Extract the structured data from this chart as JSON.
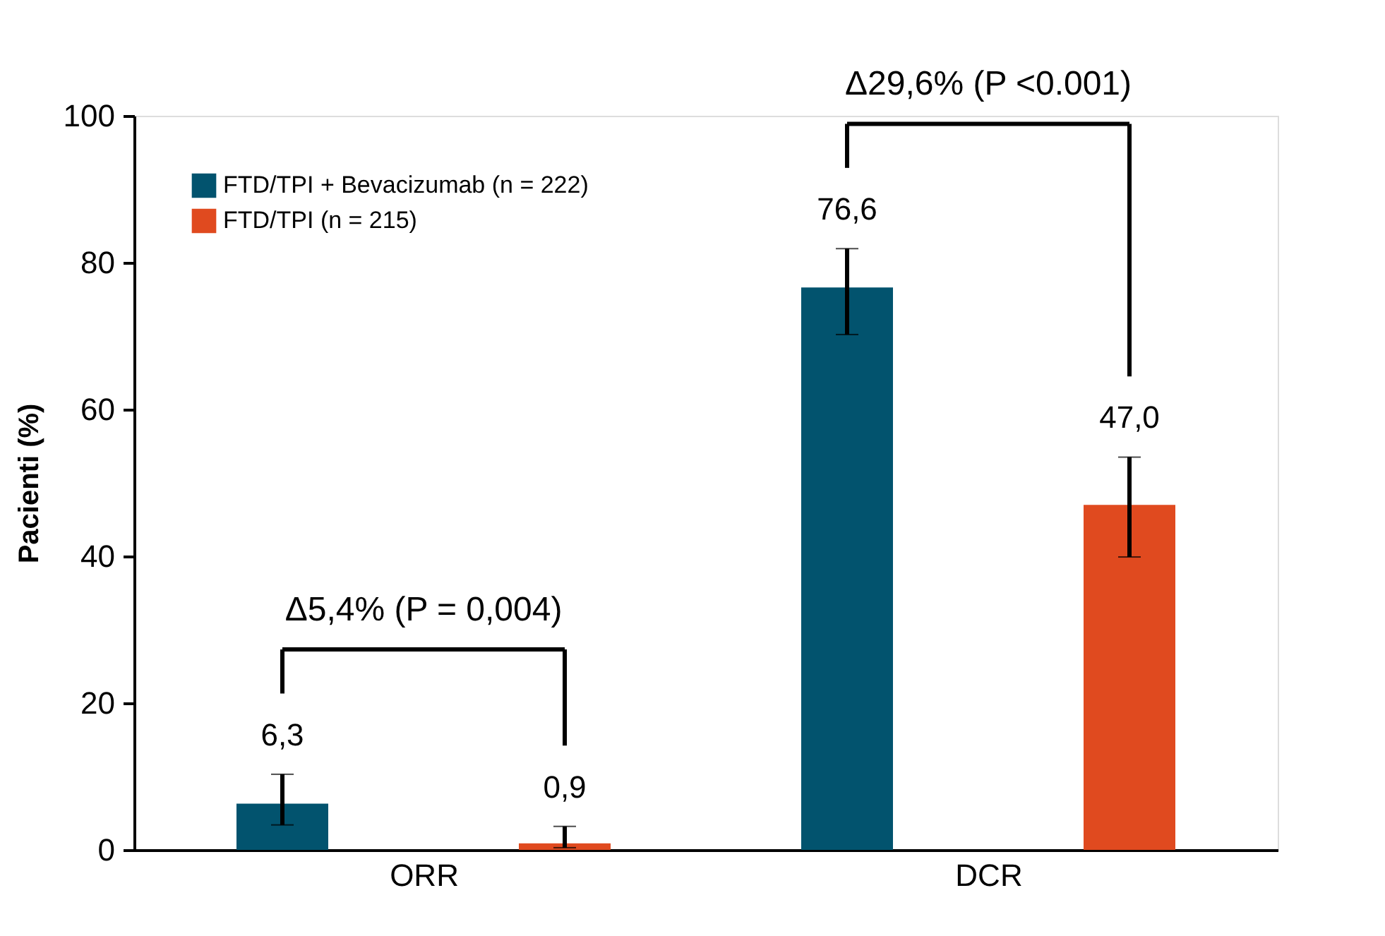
{
  "chart_data": {
    "type": "bar",
    "ylabel": "Pacienti (%)",
    "categories": [
      "ORR",
      "DCR"
    ],
    "series": [
      {
        "name": "FTD/TPI + Bevacizumab (n = 222)",
        "color": "#02536e",
        "values": [
          6.3,
          76.6
        ],
        "errors": [
          [
            3.4,
            10.3
          ],
          [
            70.2,
            81.9
          ]
        ],
        "value_labels": [
          "6,3",
          "76,6"
        ]
      },
      {
        "name": "FTD/TPI (n = 215)",
        "color": "#e04a1f",
        "values": [
          0.9,
          47.0
        ],
        "errors": [
          [
            0.3,
            3.2
          ],
          [
            39.9,
            53.5
          ]
        ],
        "value_labels": [
          "0,9",
          "47,0"
        ]
      }
    ],
    "ylim": [
      0,
      100
    ],
    "yticks": [
      0,
      20,
      40,
      60,
      80,
      100
    ],
    "grid": false,
    "legend": "top left",
    "annotations": [
      "Δ5,4% (P = 0,004)",
      "Δ29,6% (P <0.001)"
    ]
  }
}
